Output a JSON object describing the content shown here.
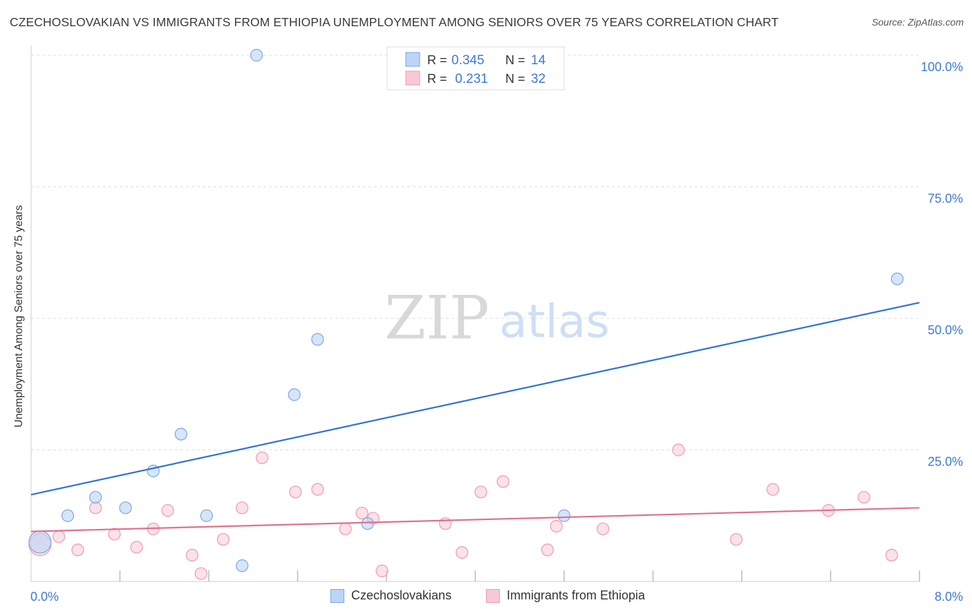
{
  "title": "CZECHOSLOVAKIAN VS IMMIGRANTS FROM ETHIOPIA UNEMPLOYMENT AMONG SENIORS OVER 75 YEARS CORRELATION CHART",
  "source": "Source: ZipAtlas.com",
  "watermark": {
    "zip": "ZIP",
    "atlas": "atlas"
  },
  "colors": {
    "blue_line": "#2e72d2",
    "blue_fill": "#bcd4f5",
    "blue_stroke": "#7aa6e2",
    "pink_line": "#e0708f",
    "pink_fill": "#f8c8d6",
    "pink_stroke": "#ec9bb3",
    "tick_text": "#3d78d6",
    "grid": "#dddddd"
  },
  "legend": {
    "rows": [
      {
        "r_label": "R = ",
        "r_value": "0.345",
        "n_label": "N = ",
        "n_value": "14"
      },
      {
        "r_label": "R = ",
        "r_value": " 0.231",
        "n_label": "N = ",
        "n_value": "32"
      }
    ]
  },
  "bottom_legend": [
    "Czechoslovakians",
    "Immigrants from Ethiopia"
  ],
  "chart_data": {
    "type": "scatter",
    "title": "CZECHOSLOVAKIAN VS IMMIGRANTS FROM ETHIOPIA UNEMPLOYMENT AMONG SENIORS OVER 75 YEARS CORRELATION CHART",
    "xlabel": "",
    "ylabel": "Unemployment Among Seniors over 75 years",
    "xlim": [
      0,
      8
    ],
    "ylim": [
      0,
      100
    ],
    "x_tick_labels": [
      "0.0%",
      "8.0%"
    ],
    "y_tick_labels": [
      "100.0%",
      "75.0%",
      "50.0%",
      "25.0%"
    ],
    "y_ticks": [
      100,
      75,
      50,
      25
    ],
    "legend_position": "top-center",
    "grid": true,
    "series": [
      {
        "name": "Czechoslovakians",
        "r": 0.345,
        "n": 14,
        "trend": {
          "x": [
            0,
            8
          ],
          "y": [
            16.5,
            53.0
          ]
        },
        "points": [
          {
            "x": 0.08,
            "y": 7.5,
            "big": true
          },
          {
            "x": 0.33,
            "y": 12.5
          },
          {
            "x": 0.58,
            "y": 16.0
          },
          {
            "x": 0.85,
            "y": 14.0
          },
          {
            "x": 1.1,
            "y": 21.0
          },
          {
            "x": 1.35,
            "y": 28.0
          },
          {
            "x": 1.58,
            "y": 12.5
          },
          {
            "x": 1.9,
            "y": 3.0
          },
          {
            "x": 2.03,
            "y": 100.0
          },
          {
            "x": 2.37,
            "y": 35.5
          },
          {
            "x": 2.58,
            "y": 46.0
          },
          {
            "x": 3.03,
            "y": 11.0
          },
          {
            "x": 4.8,
            "y": 12.5
          },
          {
            "x": 7.8,
            "y": 57.5
          }
        ]
      },
      {
        "name": "Immigrants from Ethiopia",
        "r": 0.231,
        "n": 32,
        "trend": {
          "x": [
            0,
            8
          ],
          "y": [
            9.5,
            14.0
          ]
        },
        "points": [
          {
            "x": 0.08,
            "y": 7.0,
            "big": true
          },
          {
            "x": 0.25,
            "y": 8.5
          },
          {
            "x": 0.42,
            "y": 6.0
          },
          {
            "x": 0.58,
            "y": 14.0
          },
          {
            "x": 0.75,
            "y": 9.0
          },
          {
            "x": 0.95,
            "y": 6.5
          },
          {
            "x": 1.1,
            "y": 10.0
          },
          {
            "x": 1.23,
            "y": 13.5
          },
          {
            "x": 1.45,
            "y": 5.0
          },
          {
            "x": 1.53,
            "y": 1.5
          },
          {
            "x": 1.73,
            "y": 8.0
          },
          {
            "x": 1.9,
            "y": 14.0
          },
          {
            "x": 2.08,
            "y": 23.5
          },
          {
            "x": 2.38,
            "y": 17.0
          },
          {
            "x": 2.58,
            "y": 17.5
          },
          {
            "x": 2.83,
            "y": 10.0
          },
          {
            "x": 2.98,
            "y": 13.0
          },
          {
            "x": 3.08,
            "y": 12.0
          },
          {
            "x": 3.16,
            "y": 2.0
          },
          {
            "x": 3.73,
            "y": 11.0
          },
          {
            "x": 3.88,
            "y": 5.5
          },
          {
            "x": 4.05,
            "y": 17.0
          },
          {
            "x": 4.25,
            "y": 19.0
          },
          {
            "x": 4.65,
            "y": 6.0
          },
          {
            "x": 4.73,
            "y": 10.5
          },
          {
            "x": 5.15,
            "y": 10.0
          },
          {
            "x": 5.83,
            "y": 25.0
          },
          {
            "x": 6.35,
            "y": 8.0
          },
          {
            "x": 6.68,
            "y": 17.5
          },
          {
            "x": 7.18,
            "y": 13.5
          },
          {
            "x": 7.5,
            "y": 16.0
          },
          {
            "x": 7.75,
            "y": 5.0
          }
        ]
      }
    ]
  }
}
